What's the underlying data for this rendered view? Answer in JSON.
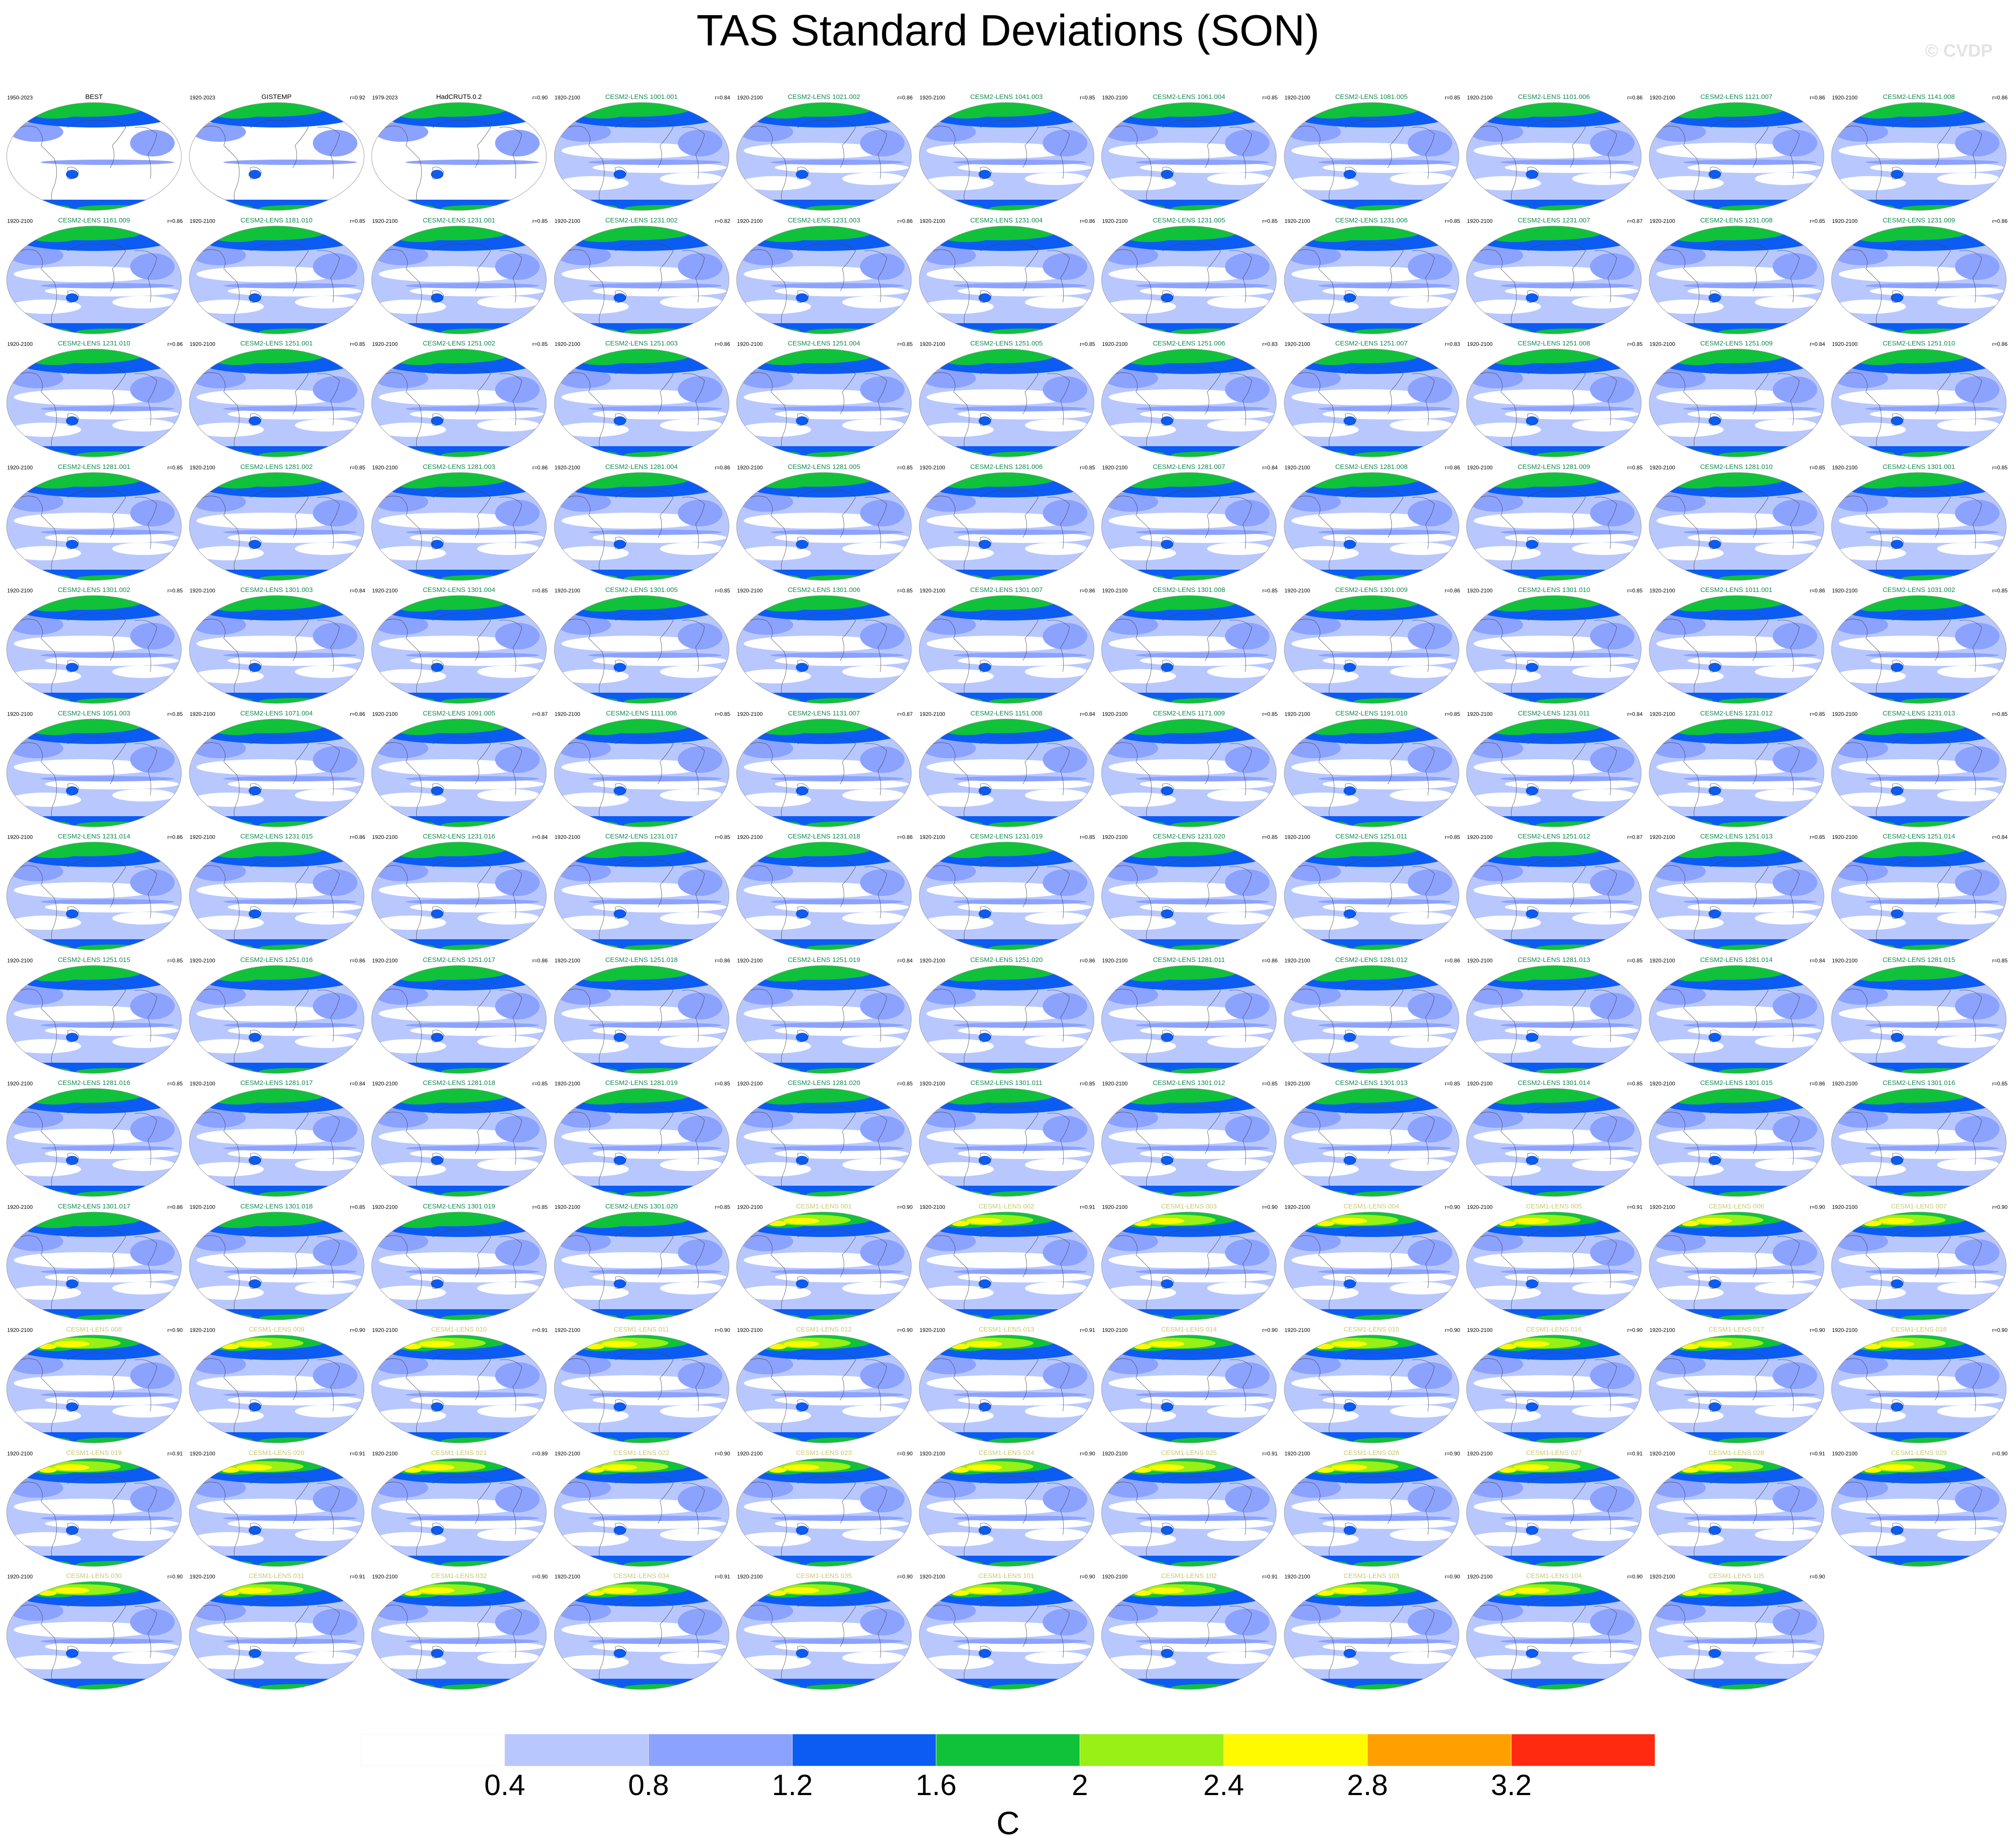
{
  "title": "TAS Standard Deviations (SON)",
  "watermark": "© CVDP",
  "colors": {
    "case_label_cesm2": "#118a50",
    "case_label_cesm1": "#c8c870",
    "case_label_obs": "#000000",
    "levels": [
      "#ffffff",
      "#b8c8ff",
      "#8ca2ff",
      "#0c5cf4",
      "#0fc23a",
      "#98f014",
      "#fffa00",
      "#ffa000",
      "#ff2a10"
    ],
    "map_outline": "#9a9a9a",
    "coast": "#444444"
  },
  "colorbar": {
    "tick_labels": [
      "0.4",
      "0.8",
      "1.2",
      "1.6",
      "2",
      "2.4",
      "2.8",
      "3.2"
    ],
    "units": "C"
  },
  "panels": [
    {
      "period": "1950-2023",
      "case": "BEST",
      "corr": "",
      "group": "obs"
    },
    {
      "period": "1920-2023",
      "case": "GISTEMP",
      "corr": "r=0.92",
      "group": "obs"
    },
    {
      "period": "1979-2023",
      "case": "HadCRUT5.0.2",
      "corr": "r=0.90",
      "group": "obs"
    },
    {
      "period": "1920-2100",
      "case": "CESM2-LENS 1001.001",
      "corr": "r=0.84",
      "group": "cesm2"
    },
    {
      "period": "1920-2100",
      "case": "CESM2-LENS 1021.002",
      "corr": "r=0.86",
      "group": "cesm2"
    },
    {
      "period": "1920-2100",
      "case": "CESM2-LENS 1041.003",
      "corr": "r=0.85",
      "group": "cesm2"
    },
    {
      "period": "1920-2100",
      "case": "CESM2-LENS 1061.004",
      "corr": "r=0.85",
      "group": "cesm2"
    },
    {
      "period": "1920-2100",
      "case": "CESM2-LENS 1081.005",
      "corr": "r=0.85",
      "group": "cesm2"
    },
    {
      "period": "1920-2100",
      "case": "CESM2-LENS 1101.006",
      "corr": "r=0.86",
      "group": "cesm2"
    },
    {
      "period": "1920-2100",
      "case": "CESM2-LENS 1121.007",
      "corr": "r=0.86",
      "group": "cesm2"
    },
    {
      "period": "1920-2100",
      "case": "CESM2-LENS 1141.008",
      "corr": "r=0.86",
      "group": "cesm2"
    },
    {
      "period": "1920-2100",
      "case": "CESM2-LENS 1161.009",
      "corr": "r=0.86",
      "group": "cesm2"
    },
    {
      "period": "1920-2100",
      "case": "CESM2-LENS 1181.010",
      "corr": "r=0.85",
      "group": "cesm2"
    },
    {
      "period": "1920-2100",
      "case": "CESM2-LENS 1231.001",
      "corr": "r=0.85",
      "group": "cesm2"
    },
    {
      "period": "1920-2100",
      "case": "CESM2-LENS 1231.002",
      "corr": "r=0.82",
      "group": "cesm2"
    },
    {
      "period": "1920-2100",
      "case": "CESM2-LENS 1231.003",
      "corr": "r=0.86",
      "group": "cesm2"
    },
    {
      "period": "1920-2100",
      "case": "CESM2-LENS 1231.004",
      "corr": "r=0.86",
      "group": "cesm2"
    },
    {
      "period": "1920-2100",
      "case": "CESM2-LENS 1231.005",
      "corr": "r=0.85",
      "group": "cesm2"
    },
    {
      "period": "1920-2100",
      "case": "CESM2-LENS 1231.006",
      "corr": "r=0.85",
      "group": "cesm2"
    },
    {
      "period": "1920-2100",
      "case": "CESM2-LENS 1231.007",
      "corr": "r=0.87",
      "group": "cesm2"
    },
    {
      "period": "1920-2100",
      "case": "CESM2-LENS 1231.008",
      "corr": "r=0.85",
      "group": "cesm2"
    },
    {
      "period": "1920-2100",
      "case": "CESM2-LENS 1231.009",
      "corr": "r=0.86",
      "group": "cesm2"
    },
    {
      "period": "1920-2100",
      "case": "CESM2-LENS 1231.010",
      "corr": "r=0.86",
      "group": "cesm2"
    },
    {
      "period": "1920-2100",
      "case": "CESM2-LENS 1251.001",
      "corr": "r=0.85",
      "group": "cesm2"
    },
    {
      "period": "1920-2100",
      "case": "CESM2-LENS 1251.002",
      "corr": "r=0.85",
      "group": "cesm2"
    },
    {
      "period": "1920-2100",
      "case": "CESM2-LENS 1251.003",
      "corr": "r=0.86",
      "group": "cesm2"
    },
    {
      "period": "1920-2100",
      "case": "CESM2-LENS 1251.004",
      "corr": "r=0.85",
      "group": "cesm2"
    },
    {
      "period": "1920-2100",
      "case": "CESM2-LENS 1251.005",
      "corr": "r=0.85",
      "group": "cesm2"
    },
    {
      "period": "1920-2100",
      "case": "CESM2-LENS 1251.006",
      "corr": "r=0.83",
      "group": "cesm2"
    },
    {
      "period": "1920-2100",
      "case": "CESM2-LENS 1251.007",
      "corr": "r=0.83",
      "group": "cesm2"
    },
    {
      "period": "1920-2100",
      "case": "CESM2-LENS 1251.008",
      "corr": "r=0.85",
      "group": "cesm2"
    },
    {
      "period": "1920-2100",
      "case": "CESM2-LENS 1251.009",
      "corr": "r=0.84",
      "group": "cesm2"
    },
    {
      "period": "1920-2100",
      "case": "CESM2-LENS 1251.010",
      "corr": "r=0.86",
      "group": "cesm2"
    },
    {
      "period": "1920-2100",
      "case": "CESM2-LENS 1281.001",
      "corr": "r=0.85",
      "group": "cesm2"
    },
    {
      "period": "1920-2100",
      "case": "CESM2-LENS 1281.002",
      "corr": "r=0.85",
      "group": "cesm2"
    },
    {
      "period": "1920-2100",
      "case": "CESM2-LENS 1281.003",
      "corr": "r=0.86",
      "group": "cesm2"
    },
    {
      "period": "1920-2100",
      "case": "CESM2-LENS 1281.004",
      "corr": "r=0.86",
      "group": "cesm2"
    },
    {
      "period": "1920-2100",
      "case": "CESM2-LENS 1281.005",
      "corr": "r=0.85",
      "group": "cesm2"
    },
    {
      "period": "1920-2100",
      "case": "CESM2-LENS 1281.006",
      "corr": "r=0.85",
      "group": "cesm2"
    },
    {
      "period": "1920-2100",
      "case": "CESM2-LENS 1281.007",
      "corr": "r=0.84",
      "group": "cesm2"
    },
    {
      "period": "1920-2100",
      "case": "CESM2-LENS 1281.008",
      "corr": "r=0.86",
      "group": "cesm2"
    },
    {
      "period": "1920-2100",
      "case": "CESM2-LENS 1281.009",
      "corr": "r=0.85",
      "group": "cesm2"
    },
    {
      "period": "1920-2100",
      "case": "CESM2-LENS 1281.010",
      "corr": "r=0.85",
      "group": "cesm2"
    },
    {
      "period": "1920-2100",
      "case": "CESM2-LENS 1301.001",
      "corr": "r=0.85",
      "group": "cesm2"
    },
    {
      "period": "1920-2100",
      "case": "CESM2-LENS 1301.002",
      "corr": "r=0.85",
      "group": "cesm2"
    },
    {
      "period": "1920-2100",
      "case": "CESM2-LENS 1301.003",
      "corr": "r=0.84",
      "group": "cesm2"
    },
    {
      "period": "1920-2100",
      "case": "CESM2-LENS 1301.004",
      "corr": "r=0.85",
      "group": "cesm2"
    },
    {
      "period": "1920-2100",
      "case": "CESM2-LENS 1301.005",
      "corr": "r=0.85",
      "group": "cesm2"
    },
    {
      "period": "1920-2100",
      "case": "CESM2-LENS 1301.006",
      "corr": "r=0.85",
      "group": "cesm2"
    },
    {
      "period": "1920-2100",
      "case": "CESM2-LENS 1301.007",
      "corr": "r=0.86",
      "group": "cesm2"
    },
    {
      "period": "1920-2100",
      "case": "CESM2-LENS 1301.008",
      "corr": "r=0.85",
      "group": "cesm2"
    },
    {
      "period": "1920-2100",
      "case": "CESM2-LENS 1301.009",
      "corr": "r=0.86",
      "group": "cesm2"
    },
    {
      "period": "1920-2100",
      "case": "CESM2-LENS 1301.010",
      "corr": "r=0.85",
      "group": "cesm2"
    },
    {
      "period": "1920-2100",
      "case": "CESM2-LENS 1011.001",
      "corr": "r=0.86",
      "group": "cesm2"
    },
    {
      "period": "1920-2100",
      "case": "CESM2-LENS 1031.002",
      "corr": "r=0.85",
      "group": "cesm2"
    },
    {
      "period": "1920-2100",
      "case": "CESM2-LENS 1051.003",
      "corr": "r=0.85",
      "group": "cesm2"
    },
    {
      "period": "1920-2100",
      "case": "CESM2-LENS 1071.004",
      "corr": "r=0.86",
      "group": "cesm2"
    },
    {
      "period": "1920-2100",
      "case": "CESM2-LENS 1091.005",
      "corr": "r=0.87",
      "group": "cesm2"
    },
    {
      "period": "1920-2100",
      "case": "CESM2-LENS 1111.006",
      "corr": "r=0.85",
      "group": "cesm2"
    },
    {
      "period": "1920-2100",
      "case": "CESM2-LENS 1131.007",
      "corr": "r=0.87",
      "group": "cesm2"
    },
    {
      "period": "1920-2100",
      "case": "CESM2-LENS 1151.008",
      "corr": "r=0.84",
      "group": "cesm2"
    },
    {
      "period": "1920-2100",
      "case": "CESM2-LENS 1171.009",
      "corr": "r=0.85",
      "group": "cesm2"
    },
    {
      "period": "1920-2100",
      "case": "CESM2-LENS 1191.010",
      "corr": "r=0.85",
      "group": "cesm2"
    },
    {
      "period": "1920-2100",
      "case": "CESM2-LENS 1231.011",
      "corr": "r=0.84",
      "group": "cesm2"
    },
    {
      "period": "1920-2100",
      "case": "CESM2-LENS 1231.012",
      "corr": "r=0.85",
      "group": "cesm2"
    },
    {
      "period": "1920-2100",
      "case": "CESM2-LENS 1231.013",
      "corr": "r=0.85",
      "group": "cesm2"
    },
    {
      "period": "1920-2100",
      "case": "CESM2-LENS 1231.014",
      "corr": "r=0.86",
      "group": "cesm2"
    },
    {
      "period": "1920-2100",
      "case": "CESM2-LENS 1231.015",
      "corr": "r=0.86",
      "group": "cesm2"
    },
    {
      "period": "1920-2100",
      "case": "CESM2-LENS 1231.016",
      "corr": "r=0.84",
      "group": "cesm2"
    },
    {
      "period": "1920-2100",
      "case": "CESM2-LENS 1231.017",
      "corr": "r=0.85",
      "group": "cesm2"
    },
    {
      "period": "1920-2100",
      "case": "CESM2-LENS 1231.018",
      "corr": "r=0.86",
      "group": "cesm2"
    },
    {
      "period": "1920-2100",
      "case": "CESM2-LENS 1231.019",
      "corr": "r=0.85",
      "group": "cesm2"
    },
    {
      "period": "1920-2100",
      "case": "CESM2-LENS 1231.020",
      "corr": "r=0.85",
      "group": "cesm2"
    },
    {
      "period": "1920-2100",
      "case": "CESM2-LENS 1251.011",
      "corr": "r=0.85",
      "group": "cesm2"
    },
    {
      "period": "1920-2100",
      "case": "CESM2-LENS 1251.012",
      "corr": "r=0.87",
      "group": "cesm2"
    },
    {
      "period": "1920-2100",
      "case": "CESM2-LENS 1251.013",
      "corr": "r=0.85",
      "group": "cesm2"
    },
    {
      "period": "1920-2100",
      "case": "CESM2-LENS 1251.014",
      "corr": "r=0.84",
      "group": "cesm2"
    },
    {
      "period": "1920-2100",
      "case": "CESM2-LENS 1251.015",
      "corr": "r=0.85",
      "group": "cesm2"
    },
    {
      "period": "1920-2100",
      "case": "CESM2-LENS 1251.016",
      "corr": "r=0.86",
      "group": "cesm2"
    },
    {
      "period": "1920-2100",
      "case": "CESM2-LENS 1251.017",
      "corr": "r=0.86",
      "group": "cesm2"
    },
    {
      "period": "1920-2100",
      "case": "CESM2-LENS 1251.018",
      "corr": "r=0.86",
      "group": "cesm2"
    },
    {
      "period": "1920-2100",
      "case": "CESM2-LENS 1251.019",
      "corr": "r=0.84",
      "group": "cesm2"
    },
    {
      "period": "1920-2100",
      "case": "CESM2-LENS 1251.020",
      "corr": "r=0.86",
      "group": "cesm2"
    },
    {
      "period": "1920-2100",
      "case": "CESM2-LENS 1281.011",
      "corr": "r=0.86",
      "group": "cesm2"
    },
    {
      "period": "1920-2100",
      "case": "CESM2-LENS 1281.012",
      "corr": "r=0.86",
      "group": "cesm2"
    },
    {
      "period": "1920-2100",
      "case": "CESM2-LENS 1281.013",
      "corr": "r=0.85",
      "group": "cesm2"
    },
    {
      "period": "1920-2100",
      "case": "CESM2-LENS 1281.014",
      "corr": "r=0.84",
      "group": "cesm2"
    },
    {
      "period": "1920-2100",
      "case": "CESM2-LENS 1281.015",
      "corr": "r=0.85",
      "group": "cesm2"
    },
    {
      "period": "1920-2100",
      "case": "CESM2-LENS 1281.016",
      "corr": "r=0.85",
      "group": "cesm2"
    },
    {
      "period": "1920-2100",
      "case": "CESM2-LENS 1281.017",
      "corr": "r=0.84",
      "group": "cesm2"
    },
    {
      "period": "1920-2100",
      "case": "CESM2-LENS 1281.018",
      "corr": "r=0.85",
      "group": "cesm2"
    },
    {
      "period": "1920-2100",
      "case": "CESM2-LENS 1281.019",
      "corr": "r=0.85",
      "group": "cesm2"
    },
    {
      "period": "1920-2100",
      "case": "CESM2-LENS 1281.020",
      "corr": "r=0.85",
      "group": "cesm2"
    },
    {
      "period": "1920-2100",
      "case": "CESM2-LENS 1301.011",
      "corr": "r=0.85",
      "group": "cesm2"
    },
    {
      "period": "1920-2100",
      "case": "CESM2-LENS 1301.012",
      "corr": "r=0.85",
      "group": "cesm2"
    },
    {
      "period": "1920-2100",
      "case": "CESM2-LENS 1301.013",
      "corr": "r=0.85",
      "group": "cesm2"
    },
    {
      "period": "1920-2100",
      "case": "CESM2-LENS 1301.014",
      "corr": "r=0.85",
      "group": "cesm2"
    },
    {
      "period": "1920-2100",
      "case": "CESM2-LENS 1301.015",
      "corr": "r=0.86",
      "group": "cesm2"
    },
    {
      "period": "1920-2100",
      "case": "CESM2-LENS 1301.016",
      "corr": "r=0.85",
      "group": "cesm2"
    },
    {
      "period": "1920-2100",
      "case": "CESM2-LENS 1301.017",
      "corr": "r=0.86",
      "group": "cesm2"
    },
    {
      "period": "1920-2100",
      "case": "CESM2-LENS 1301.018",
      "corr": "r=0.85",
      "group": "cesm2"
    },
    {
      "period": "1920-2100",
      "case": "CESM2-LENS 1301.019",
      "corr": "r=0.85",
      "group": "cesm2"
    },
    {
      "period": "1920-2100",
      "case": "CESM2-LENS 1301.020",
      "corr": "r=0.85",
      "group": "cesm2"
    },
    {
      "period": "1920-2100",
      "case": "CESM1-LENS 001",
      "corr": "r=0.90",
      "group": "cesm1"
    },
    {
      "period": "1920-2100",
      "case": "CESM1-LENS 002",
      "corr": "r=0.91",
      "group": "cesm1"
    },
    {
      "period": "1920-2100",
      "case": "CESM1-LENS 003",
      "corr": "r=0.90",
      "group": "cesm1"
    },
    {
      "period": "1920-2100",
      "case": "CESM1-LENS 004",
      "corr": "r=0.90",
      "group": "cesm1"
    },
    {
      "period": "1920-2100",
      "case": "CESM1-LENS 005",
      "corr": "r=0.91",
      "group": "cesm1"
    },
    {
      "period": "1920-2100",
      "case": "CESM1-LENS 006",
      "corr": "r=0.90",
      "group": "cesm1"
    },
    {
      "period": "1920-2100",
      "case": "CESM1-LENS 007",
      "corr": "r=0.90",
      "group": "cesm1"
    },
    {
      "period": "1920-2100",
      "case": "CESM1-LENS 008",
      "corr": "r=0.90",
      "group": "cesm1"
    },
    {
      "period": "1920-2100",
      "case": "CESM1-LENS 009",
      "corr": "r=0.90",
      "group": "cesm1"
    },
    {
      "period": "1920-2100",
      "case": "CESM1-LENS 010",
      "corr": "r=0.91",
      "group": "cesm1"
    },
    {
      "period": "1920-2100",
      "case": "CESM1-LENS 011",
      "corr": "r=0.90",
      "group": "cesm1"
    },
    {
      "period": "1920-2100",
      "case": "CESM1-LENS 012",
      "corr": "r=0.90",
      "group": "cesm1"
    },
    {
      "period": "1920-2100",
      "case": "CESM1-LENS 013",
      "corr": "r=0.91",
      "group": "cesm1"
    },
    {
      "period": "1920-2100",
      "case": "CESM1-LENS 014",
      "corr": "r=0.90",
      "group": "cesm1"
    },
    {
      "period": "1920-2100",
      "case": "CESM1-LENS 015",
      "corr": "r=0.90",
      "group": "cesm1"
    },
    {
      "period": "1920-2100",
      "case": "CESM1-LENS 016",
      "corr": "r=0.90",
      "group": "cesm1"
    },
    {
      "period": "1920-2100",
      "case": "CESM1-LENS 017",
      "corr": "r=0.90",
      "group": "cesm1"
    },
    {
      "period": "1920-2100",
      "case": "CESM1-LENS 018",
      "corr": "r=0.90",
      "group": "cesm1"
    },
    {
      "period": "1920-2100",
      "case": "CESM1-LENS 019",
      "corr": "r=0.91",
      "group": "cesm1"
    },
    {
      "period": "1920-2100",
      "case": "CESM1-LENS 020",
      "corr": "r=0.91",
      "group": "cesm1"
    },
    {
      "period": "1920-2100",
      "case": "CESM1-LENS 021",
      "corr": "r=0.89",
      "group": "cesm1"
    },
    {
      "period": "1920-2100",
      "case": "CESM1-LENS 022",
      "corr": "r=0.90",
      "group": "cesm1"
    },
    {
      "period": "1920-2100",
      "case": "CESM1-LENS 023",
      "corr": "r=0.90",
      "group": "cesm1"
    },
    {
      "period": "1920-2100",
      "case": "CESM1-LENS 024",
      "corr": "r=0.90",
      "group": "cesm1"
    },
    {
      "period": "1920-2100",
      "case": "CESM1-LENS 025",
      "corr": "r=0.91",
      "group": "cesm1"
    },
    {
      "period": "1920-2100",
      "case": "CESM1-LENS 026",
      "corr": "r=0.90",
      "group": "cesm1"
    },
    {
      "period": "1920-2100",
      "case": "CESM1-LENS 027",
      "corr": "r=0.91",
      "group": "cesm1"
    },
    {
      "period": "1920-2100",
      "case": "CESM1-LENS 028",
      "corr": "r=0.91",
      "group": "cesm1"
    },
    {
      "period": "1920-2100",
      "case": "CESM1-LENS 029",
      "corr": "r=0.90",
      "group": "cesm1"
    },
    {
      "period": "1920-2100",
      "case": "CESM1-LENS 030",
      "corr": "r=0.90",
      "group": "cesm1"
    },
    {
      "period": "1920-2100",
      "case": "CESM1-LENS 031",
      "corr": "r=0.91",
      "group": "cesm1"
    },
    {
      "period": "1920-2100",
      "case": "CESM1-LENS 032",
      "corr": "r=0.90",
      "group": "cesm1"
    },
    {
      "period": "1920-2100",
      "case": "CESM1-LENS 034",
      "corr": "r=0.91",
      "group": "cesm1"
    },
    {
      "period": "1920-2100",
      "case": "CESM1-LENS 035",
      "corr": "r=0.90",
      "group": "cesm1"
    },
    {
      "period": "1920-2100",
      "case": "CESM1-LENS 101",
      "corr": "r=0.90",
      "group": "cesm1"
    },
    {
      "period": "1920-2100",
      "case": "CESM1-LENS 102",
      "corr": "r=0.91",
      "group": "cesm1"
    },
    {
      "period": "1920-2100",
      "case": "CESM1-LENS 103",
      "corr": "r=0.90",
      "group": "cesm1"
    },
    {
      "period": "1920-2100",
      "case": "CESM1-LENS 104",
      "corr": "r=0.90",
      "group": "cesm1"
    },
    {
      "period": "1920-2100",
      "case": "CESM1-LENS 105",
      "corr": "r=0.90",
      "group": "cesm1"
    }
  ]
}
